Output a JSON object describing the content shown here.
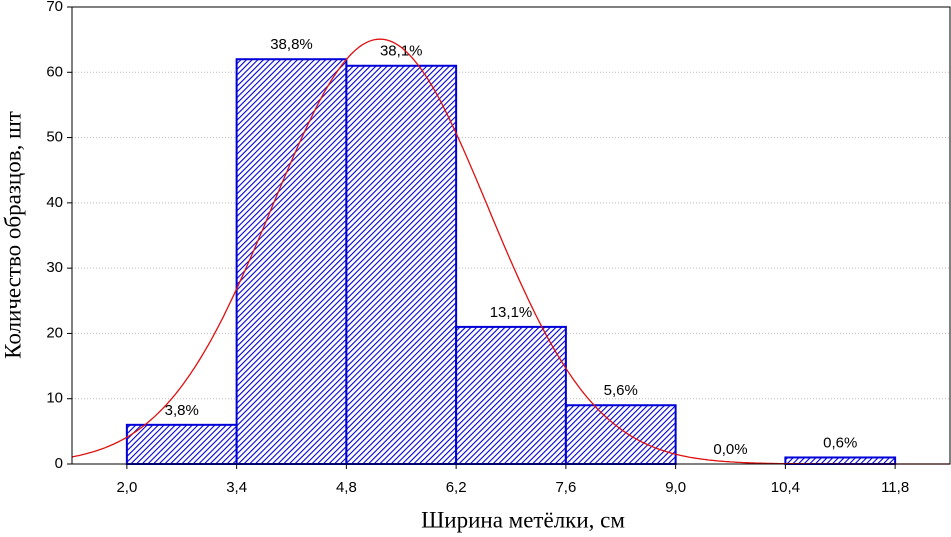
{
  "chart_data": {
    "type": "histogram",
    "x_label": "Ширина метёлки, см",
    "y_label": "Количество образцов, шт",
    "bins": [
      2.0,
      3.4,
      4.8,
      6.2,
      7.6,
      9.0,
      10.4,
      11.8
    ],
    "values": [
      6,
      62,
      61,
      21,
      9,
      0,
      1
    ],
    "value_labels": [
      "3,8%",
      "38,8%",
      "38,1%",
      "13,1%",
      "5,6%",
      "0,0%",
      "0,6%"
    ],
    "color": "#0000d8",
    "xlim": [
      1.3,
      12.5
    ],
    "xticks": [
      {
        "value": 2.0,
        "label": "2,0"
      },
      {
        "value": 3.4,
        "label": "3,4"
      },
      {
        "value": 4.8,
        "label": "4,8"
      },
      {
        "value": 6.2,
        "label": "6,2"
      },
      {
        "value": 7.6,
        "label": "7,6"
      },
      {
        "value": 9.0,
        "label": "9,0"
      },
      {
        "value": 10.4,
        "label": "10,4"
      },
      {
        "value": 11.8,
        "label": "11,8"
      }
    ],
    "ylim": [
      0,
      70
    ],
    "yticks": [
      0,
      10,
      20,
      30,
      40,
      50,
      60,
      70
    ],
    "grid": true,
    "fit_curve": {
      "distribution": "normal",
      "color": "#e01010"
    }
  }
}
